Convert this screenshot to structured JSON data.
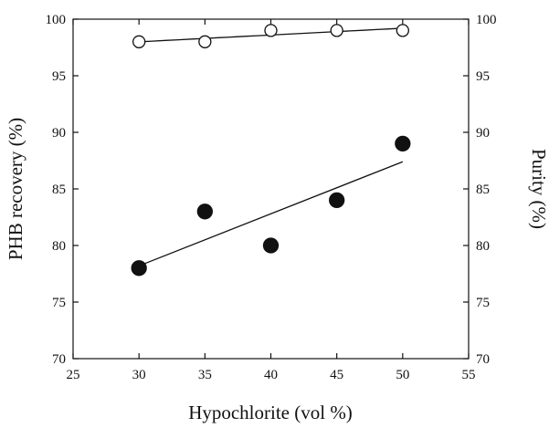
{
  "chart_data": {
    "type": "scatter",
    "xlabel": "Hypochlorite (vol %)",
    "ylabel": "PHB recovery (%)",
    "y2label": "Purity (%)",
    "xlim": [
      25,
      55
    ],
    "ylim": [
      70,
      100
    ],
    "y2lim": [
      70,
      100
    ],
    "xticks": [
      "25",
      "30",
      "35",
      "40",
      "45",
      "50",
      "55"
    ],
    "yticks": [
      "70",
      "75",
      "80",
      "85",
      "90",
      "95",
      "100"
    ],
    "y2ticks": [
      "70",
      "75",
      "80",
      "85",
      "90",
      "95",
      "100"
    ],
    "grid": false,
    "series": [
      {
        "marker": "filled-circle",
        "axis": "left",
        "x": [
          30,
          35,
          40,
          45,
          50
        ],
        "y": [
          78,
          83,
          80,
          84,
          89
        ],
        "trendline": "linear"
      },
      {
        "marker": "open-circle",
        "axis": "right",
        "x": [
          30,
          35,
          40,
          45,
          50
        ],
        "y": [
          98,
          98,
          99,
          99,
          99
        ],
        "trendline": "smooth"
      }
    ]
  }
}
